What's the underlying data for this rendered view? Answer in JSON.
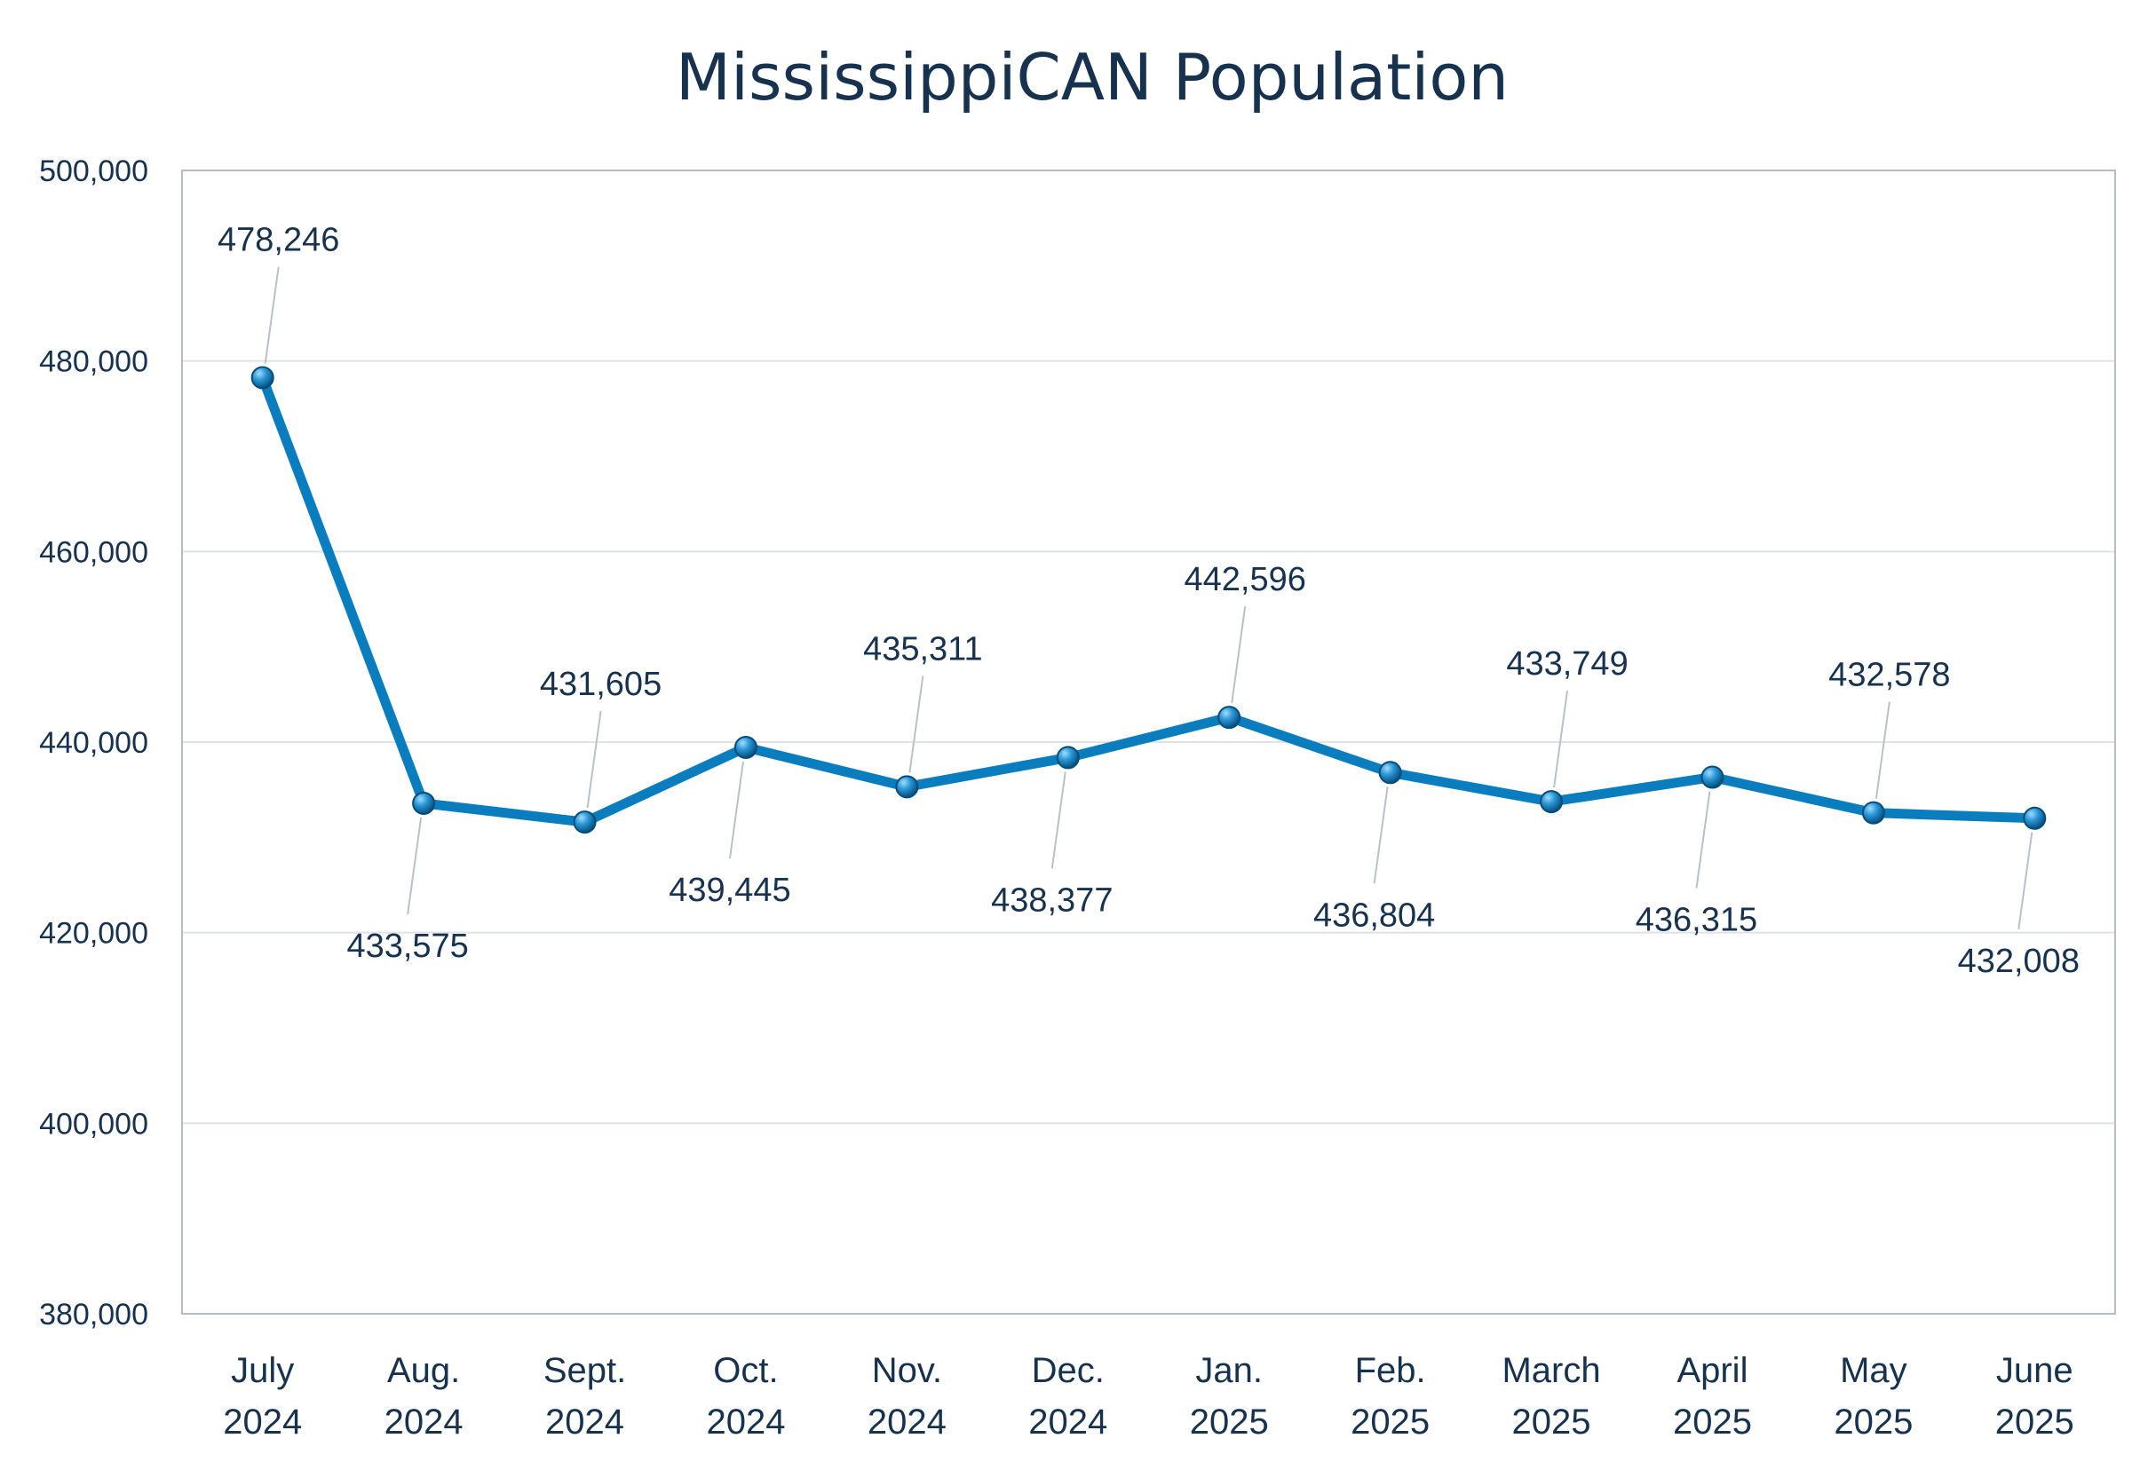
{
  "chart_data": {
    "type": "line",
    "title": "MississippiCAN Population",
    "xlabel": "",
    "ylabel": "",
    "ylim": [
      380000,
      500000
    ],
    "y_ticks": [
      "380,000",
      "400,000",
      "420,000",
      "440,000",
      "460,000",
      "480,000",
      "500,000"
    ],
    "grid": true,
    "legend": "none",
    "categories": [
      [
        "July",
        "2024"
      ],
      [
        "Aug.",
        "2024"
      ],
      [
        "Sept.",
        "2024"
      ],
      [
        "Oct.",
        "2024"
      ],
      [
        "Nov.",
        "2024"
      ],
      [
        "Dec.",
        "2024"
      ],
      [
        "Jan.",
        "2025"
      ],
      [
        "Feb.",
        "2025"
      ],
      [
        "March",
        "2025"
      ],
      [
        "April",
        "2025"
      ],
      [
        "May",
        "2025"
      ],
      [
        "June",
        "2025"
      ]
    ],
    "series": [
      {
        "values": [
          478246,
          433575,
          431605,
          439445,
          435311,
          438377,
          442596,
          436804,
          433749,
          436315,
          432578,
          432008
        ],
        "labels": [
          "478,246",
          "433,575",
          "431,605",
          "439,445",
          "435,311",
          "438,377",
          "442,596",
          "436,804",
          "433,749",
          "436,315",
          "432,578",
          "432,008"
        ],
        "label_side": [
          "above",
          "below",
          "above",
          "below",
          "above",
          "below",
          "above",
          "below",
          "above",
          "below",
          "above",
          "below"
        ],
        "color": "#0a7dbf"
      }
    ]
  }
}
